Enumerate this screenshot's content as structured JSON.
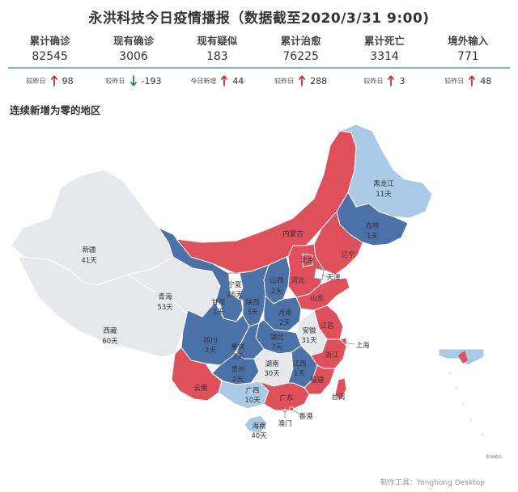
{
  "title": "永洪科技今日疫情播报（数据截至2020/3/31 9:00)",
  "stats": [
    {
      "label": "累计确诊",
      "value": "82545",
      "delta_label": "较昨日",
      "direction": "up",
      "delta": "98"
    },
    {
      "label": "现有确诊",
      "value": "3006",
      "delta_label": "较昨日",
      "direction": "down",
      "delta": "-193"
    },
    {
      "label": "现有疑似",
      "value": "183",
      "delta_label": "今日新增",
      "direction": "up",
      "delta": "44"
    },
    {
      "label": "累计治愈",
      "value": "76225",
      "delta_label": "较昨日",
      "direction": "up",
      "delta": "288"
    },
    {
      "label": "累计死亡",
      "value": "3314",
      "delta_label": "较昨日",
      "direction": "up",
      "delta": "3"
    },
    {
      "label": "境外输入",
      "value": "771",
      "delta_label": "较昨日",
      "direction": "up",
      "delta": "48"
    }
  ],
  "section_title": "连续新增为零的地区",
  "colors": {
    "red": "#e0505a",
    "blue": "#4a72a8",
    "lightblue": "#a9cbe6",
    "gray": "#e6e8ec",
    "up": "#c0392b",
    "down": "#2e8b3a"
  },
  "regions": {
    "xinjiang": {
      "name": "新疆",
      "days": "41天"
    },
    "xizang": {
      "name": "西藏",
      "days": "60天"
    },
    "qinghai": {
      "name": "青海",
      "days": "53天"
    },
    "heilongjiang": {
      "name": "黑龙江",
      "days": "11天"
    },
    "jilin": {
      "name": "吉林",
      "days": "1天"
    },
    "neimenggu": {
      "name": "内蒙古"
    },
    "liaoning": {
      "name": "辽宁"
    },
    "beijing": {
      "name": "北京"
    },
    "tianjin": {
      "name": "天津"
    },
    "hebei": {
      "name": "河北"
    },
    "shanxi": {
      "name": "山西",
      "days": "2天"
    },
    "ningxia": {
      "name": "宁夏",
      "days": "26天"
    },
    "gansu": {
      "name": "甘肃",
      "days": "1天"
    },
    "shaanxi": {
      "name": "陕西",
      "days": "3天"
    },
    "henan": {
      "name": "河南",
      "days": "2天"
    },
    "shandong": {
      "name": "山东"
    },
    "jiangsu": {
      "name": "江苏"
    },
    "shanghai": {
      "name": "上海"
    },
    "anhui": {
      "name": "安徽",
      "days": "31天"
    },
    "hubei": {
      "name": "湖北",
      "days": "7天"
    },
    "sichuan": {
      "name": "四川",
      "days": "2天"
    },
    "chongqing": {
      "name": "重庆",
      "days": "3天"
    },
    "guizhou": {
      "name": "贵州",
      "days": "2天"
    },
    "hunan": {
      "name": "湖南",
      "days": "30天"
    },
    "jiangxi": {
      "name": "江西",
      "days": "1天"
    },
    "zhejiang": {
      "name": "浙江"
    },
    "fujian": {
      "name": "福建"
    },
    "yunnan": {
      "name": "云南"
    },
    "guangxi": {
      "name": "广西",
      "days": "10天"
    },
    "guangdong": {
      "name": "广东"
    },
    "hainan": {
      "name": "海南",
      "days": "40天"
    },
    "taiwan": {
      "name": "台湾"
    },
    "xianggang": {
      "name": "香港"
    },
    "aomen": {
      "name": "澳门"
    }
  },
  "legend_note": "南海诸岛",
  "footer": "制作工具：Yonghong Desktop"
}
